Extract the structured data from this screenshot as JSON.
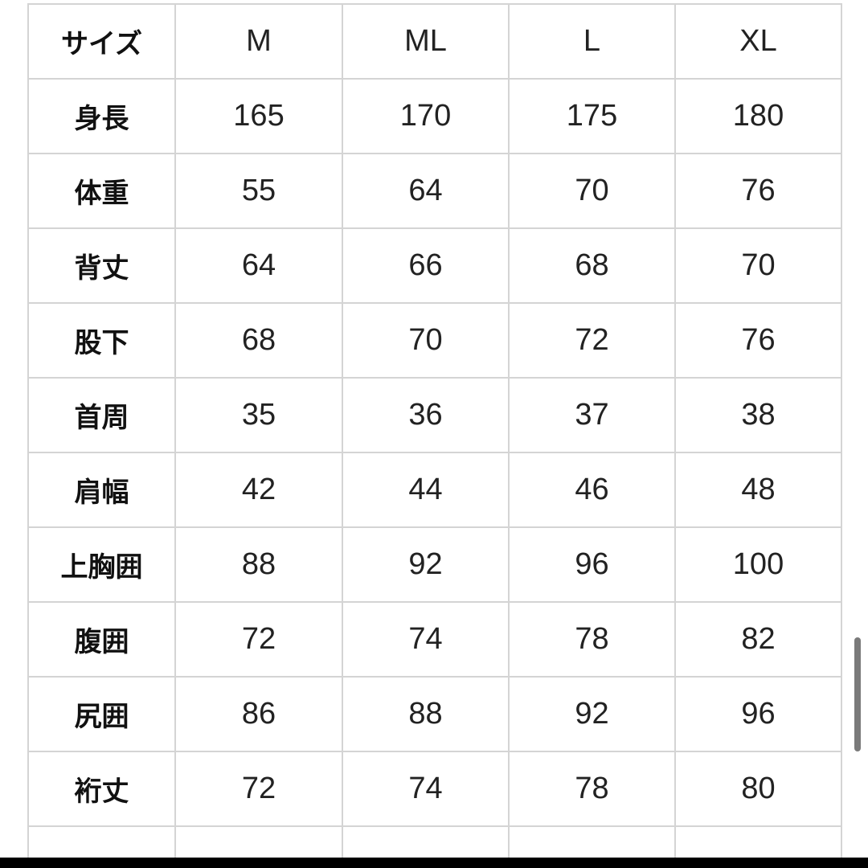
{
  "table": {
    "header": [
      "サイズ",
      "M",
      "ML",
      "L",
      "XL"
    ],
    "rows": [
      [
        "身長",
        "165",
        "170",
        "175",
        "180"
      ],
      [
        "体重",
        "55",
        "64",
        "70",
        "76"
      ],
      [
        "背丈",
        "64",
        "66",
        "68",
        "70"
      ],
      [
        "股下",
        "68",
        "70",
        "72",
        "76"
      ],
      [
        "首周",
        "35",
        "36",
        "37",
        "38"
      ],
      [
        "肩幅",
        "42",
        "44",
        "46",
        "48"
      ],
      [
        "上胸囲",
        "88",
        "92",
        "96",
        "100"
      ],
      [
        "腹囲",
        "72",
        "74",
        "78",
        "82"
      ],
      [
        "尻囲",
        "86",
        "88",
        "92",
        "96"
      ],
      [
        "裄丈",
        "72",
        "74",
        "78",
        "80"
      ]
    ]
  },
  "colors": {
    "border": "#d4d4d4",
    "scrollbar": "#7a7a7a"
  },
  "scroll_position": 0.8
}
